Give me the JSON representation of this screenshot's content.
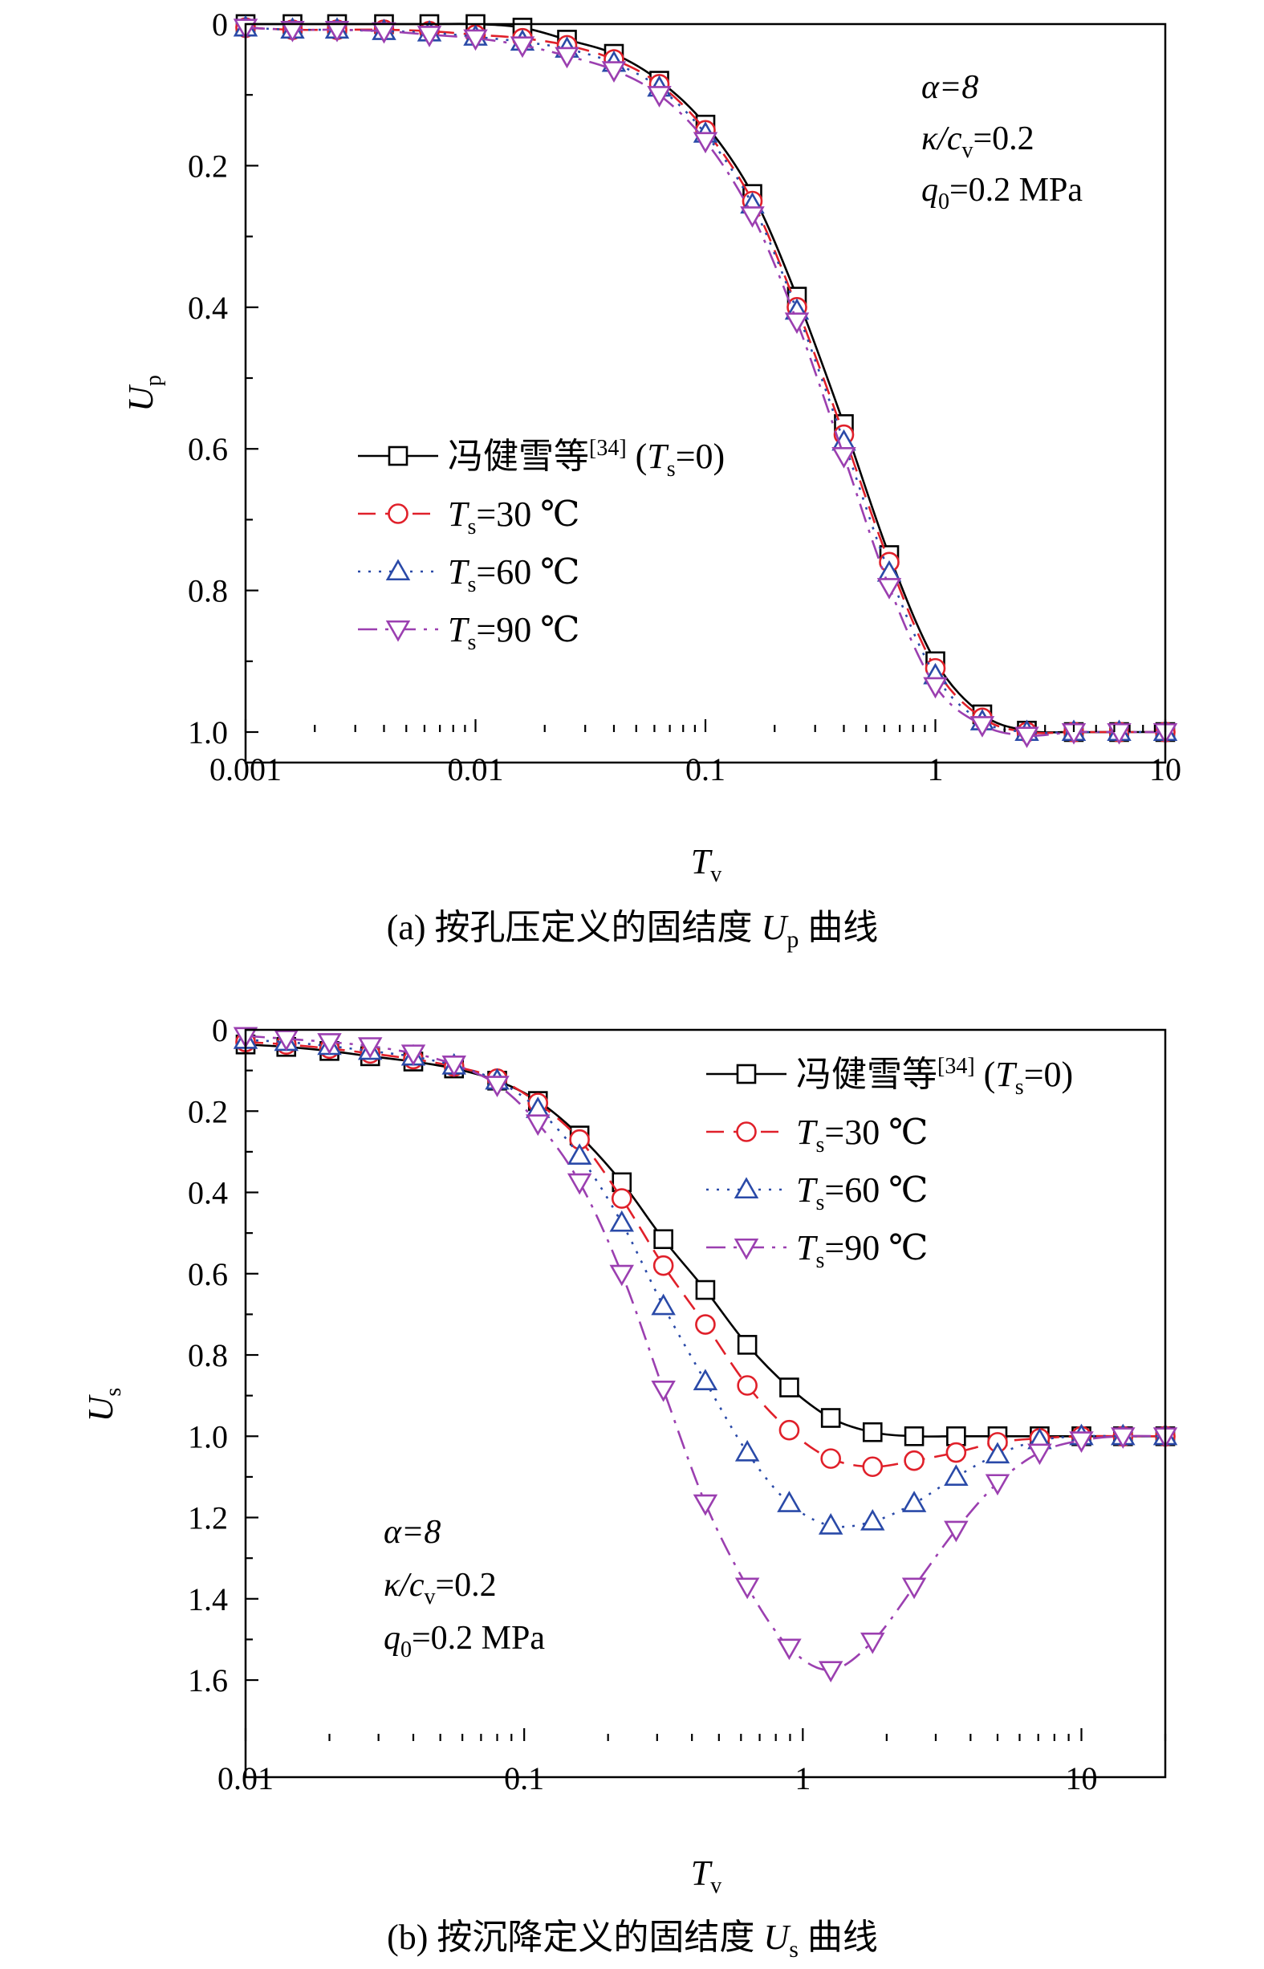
{
  "colors": {
    "feng": "#000000",
    "ts30": "#e0202a",
    "ts60": "#2a4aa8",
    "ts90": "#9b3fb0"
  },
  "panels": [
    {
      "caption": {
        "prefix": "(a)  按孔压定义的固结度 ",
        "sym": "U",
        "sub": "p",
        "suffix": " 曲线"
      },
      "annotation": {
        "alpha": "α=8",
        "kappa": "κ/c",
        "kappa_sub": "v",
        "kappa_val": "=0.2",
        "q": "q",
        "q_sub": "0",
        "q_val": "=0.2 MPa"
      },
      "legend": [
        {
          "pre": "冯健雪等",
          "sup": "[34]",
          "mid": " (",
          "sym": "T",
          "sub": "s",
          "post": "=0)"
        },
        {
          "pre": "",
          "sup": "",
          "mid": "",
          "sym": "T",
          "sub": "s",
          "post": "=30 ℃"
        },
        {
          "pre": "",
          "sup": "",
          "mid": "",
          "sym": "T",
          "sub": "s",
          "post": "=60 ℃"
        },
        {
          "pre": "",
          "sup": "",
          "mid": "",
          "sym": "T",
          "sub": "s",
          "post": "=90 ℃"
        }
      ]
    },
    {
      "caption": {
        "prefix": "(b)  按沉降定义的固结度 ",
        "sym": "U",
        "sub": "s",
        "suffix": " 曲线"
      },
      "annotation": {
        "alpha": "α=8",
        "kappa": "κ/c",
        "kappa_sub": "v",
        "kappa_val": "=0.2",
        "q": "q",
        "q_sub": "0",
        "q_val": "=0.2 MPa"
      },
      "legend": [
        {
          "pre": "冯健雪等",
          "sup": "[34]",
          "mid": " (",
          "sym": "T",
          "sub": "s",
          "post": "=0)"
        },
        {
          "pre": "",
          "sup": "",
          "mid": "",
          "sym": "T",
          "sub": "s",
          "post": "=30 ℃"
        },
        {
          "pre": "",
          "sup": "",
          "mid": "",
          "sym": "T",
          "sub": "s",
          "post": "=60 ℃"
        },
        {
          "pre": "",
          "sup": "",
          "mid": "",
          "sym": "T",
          "sub": "s",
          "post": "=90 ℃"
        }
      ]
    }
  ],
  "chart_data": [
    {
      "type": "line",
      "xscale": "log",
      "xlim": [
        0.001,
        10
      ],
      "ylim": [
        0,
        1.0
      ],
      "y_inverted": true,
      "xlabel": {
        "sym": "T",
        "sub": "v"
      },
      "ylabel": {
        "sym": "U",
        "sub": "p"
      },
      "x_ticks": [
        0.001,
        0.01,
        0.1,
        1,
        10
      ],
      "x_tick_labels": [
        "0.001",
        "0.01",
        "0.1",
        "1",
        "10"
      ],
      "y_ticks": [
        0,
        0.2,
        0.4,
        0.6,
        0.8,
        1.0
      ],
      "y_tick_labels": [
        "0",
        "0.2",
        "0.4",
        "0.6",
        "0.8",
        "1.0"
      ],
      "legend_position": "center-left",
      "series": [
        {
          "name": "冯健雪等[34] (Ts=0)",
          "marker": "square",
          "dash": "solid",
          "x": [
            0.001,
            0.0016,
            0.0025,
            0.004,
            0.0063,
            0.01,
            0.016,
            0.025,
            0.04,
            0.063,
            0.1,
            0.16,
            0.25,
            0.4,
            0.63,
            1.0,
            1.6,
            2.5,
            4.0,
            6.3,
            10
          ],
          "y": [
            0.0,
            0.0,
            0.0,
            0.0,
            0.0,
            0.0,
            0.005,
            0.022,
            0.042,
            0.08,
            0.142,
            0.24,
            0.385,
            0.565,
            0.75,
            0.9,
            0.975,
            0.998,
            1.0,
            1.0,
            1.0
          ]
        },
        {
          "name": "Ts=30 ℃",
          "marker": "circle",
          "dash": "dash",
          "x": [
            0.001,
            0.0016,
            0.0025,
            0.004,
            0.0063,
            0.01,
            0.016,
            0.025,
            0.04,
            0.063,
            0.1,
            0.16,
            0.25,
            0.4,
            0.63,
            1.0,
            1.6,
            2.5,
            4.0,
            6.3,
            10
          ],
          "y": [
            0.005,
            0.008,
            0.008,
            0.008,
            0.01,
            0.015,
            0.02,
            0.03,
            0.05,
            0.085,
            0.15,
            0.25,
            0.4,
            0.58,
            0.76,
            0.91,
            0.98,
            1.0,
            1.0,
            1.0,
            1.0
          ]
        },
        {
          "name": "Ts=60 ℃",
          "marker": "triangle-up",
          "dash": "dot",
          "x": [
            0.001,
            0.0016,
            0.0025,
            0.004,
            0.0063,
            0.01,
            0.016,
            0.025,
            0.04,
            0.063,
            0.1,
            0.16,
            0.25,
            0.4,
            0.63,
            1.0,
            1.6,
            2.5,
            4.0,
            6.3,
            10
          ],
          "y": [
            0.005,
            0.008,
            0.008,
            0.01,
            0.012,
            0.018,
            0.025,
            0.035,
            0.055,
            0.09,
            0.155,
            0.255,
            0.405,
            0.59,
            0.775,
            0.92,
            0.985,
            1.0,
            1.0,
            1.0,
            1.0
          ]
        },
        {
          "name": "Ts=90 ℃",
          "marker": "triangle-down",
          "dash": "dashdot",
          "x": [
            0.001,
            0.0016,
            0.0025,
            0.004,
            0.0063,
            0.01,
            0.016,
            0.025,
            0.04,
            0.063,
            0.1,
            0.16,
            0.25,
            0.4,
            0.63,
            1.0,
            1.6,
            2.5,
            4.0,
            6.3,
            10
          ],
          "y": [
            0.005,
            0.008,
            0.008,
            0.01,
            0.015,
            0.02,
            0.03,
            0.045,
            0.065,
            0.1,
            0.165,
            0.27,
            0.42,
            0.61,
            0.795,
            0.935,
            0.99,
            1.005,
            1.0,
            1.0,
            1.0
          ]
        }
      ]
    },
    {
      "type": "line",
      "xscale": "log",
      "xlim": [
        0.01,
        20
      ],
      "ylim": [
        0,
        1.75
      ],
      "y_inverted": true,
      "xlabel": {
        "sym": "T",
        "sub": "v"
      },
      "ylabel": {
        "sym": "U",
        "sub": "s"
      },
      "x_ticks": [
        0.01,
        0.1,
        1,
        10
      ],
      "x_tick_labels": [
        "0.01",
        "0.1",
        "1",
        "10"
      ],
      "y_ticks": [
        0,
        0.2,
        0.4,
        0.6,
        0.8,
        1.0,
        1.2,
        1.4,
        1.6
      ],
      "y_tick_labels": [
        "0",
        "0.2",
        "0.4",
        "0.6",
        "0.8",
        "1.0",
        "1.2",
        "1.4",
        "1.6"
      ],
      "legend_position": "top-right",
      "series": [
        {
          "name": "冯健雪等[34] (Ts=0)",
          "marker": "square",
          "dash": "solid",
          "x": [
            0.01,
            0.014,
            0.02,
            0.028,
            0.04,
            0.056,
            0.08,
            0.112,
            0.158,
            0.224,
            0.316,
            0.447,
            0.632,
            0.894,
            1.26,
            1.78,
            2.51,
            3.55,
            5.0,
            7.08,
            10,
            14.1,
            20
          ],
          "y": [
            0.036,
            0.042,
            0.052,
            0.065,
            0.078,
            0.095,
            0.125,
            0.175,
            0.26,
            0.375,
            0.515,
            0.64,
            0.775,
            0.88,
            0.955,
            0.99,
            1.0,
            1.0,
            1.0,
            1.0,
            1.0,
            1.0,
            1.0
          ]
        },
        {
          "name": "Ts=30 ℃",
          "marker": "circle",
          "dash": "dash",
          "x": [
            0.01,
            0.014,
            0.02,
            0.028,
            0.04,
            0.056,
            0.08,
            0.112,
            0.158,
            0.224,
            0.316,
            0.447,
            0.632,
            0.894,
            1.26,
            1.78,
            2.51,
            3.55,
            5.0,
            7.08,
            10,
            14.1,
            20
          ],
          "y": [
            0.03,
            0.036,
            0.046,
            0.058,
            0.072,
            0.09,
            0.12,
            0.18,
            0.27,
            0.415,
            0.58,
            0.725,
            0.875,
            0.985,
            1.055,
            1.075,
            1.06,
            1.04,
            1.015,
            1.005,
            1.0,
            1.0,
            1.0
          ]
        },
        {
          "name": "Ts=60 ℃",
          "marker": "triangle-up",
          "dash": "dot",
          "x": [
            0.01,
            0.014,
            0.02,
            0.028,
            0.04,
            0.056,
            0.08,
            0.112,
            0.158,
            0.224,
            0.316,
            0.447,
            0.632,
            0.894,
            1.26,
            1.78,
            2.51,
            3.55,
            5.0,
            7.08,
            10,
            14.1,
            20
          ],
          "y": [
            0.025,
            0.03,
            0.04,
            0.052,
            0.066,
            0.088,
            0.125,
            0.195,
            0.31,
            0.475,
            0.68,
            0.865,
            1.04,
            1.165,
            1.22,
            1.21,
            1.165,
            1.1,
            1.045,
            1.01,
            1.0,
            1.0,
            1.0
          ]
        },
        {
          "name": "Ts=90 ℃",
          "marker": "triangle-down",
          "dash": "dashdot",
          "x": [
            0.01,
            0.014,
            0.02,
            0.028,
            0.04,
            0.056,
            0.08,
            0.112,
            0.158,
            0.224,
            0.316,
            0.447,
            0.632,
            0.894,
            1.26,
            1.78,
            2.51,
            3.55,
            5.0,
            7.08,
            10,
            14.1,
            20
          ],
          "y": [
            0.015,
            0.022,
            0.03,
            0.04,
            0.058,
            0.085,
            0.135,
            0.23,
            0.375,
            0.6,
            0.885,
            1.165,
            1.37,
            1.52,
            1.575,
            1.505,
            1.37,
            1.23,
            1.115,
            1.04,
            1.01,
            1.0,
            1.0
          ]
        }
      ]
    }
  ]
}
